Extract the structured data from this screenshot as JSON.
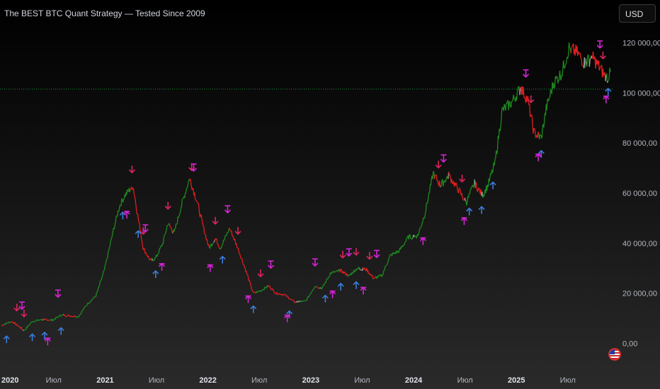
{
  "header": {
    "title": "The BEST BTC Quant Strategy — Tested Since 2009",
    "currency": "USD"
  },
  "colors": {
    "bull": "#1e8a1e",
    "bear": "#e01e1e",
    "neutral": "#9e9e9e",
    "long_signal": "#3b7ddd",
    "short_signal": "#e0245e",
    "exit_signal": "#d623d6",
    "dotted_line": "#1b8f3a"
  },
  "chart_data": {
    "type": "line",
    "title": "The BEST BTC Quant Strategy — Tested Since 2009",
    "x_tick_labels": [
      "2020",
      "Июл",
      "2021",
      "Июл",
      "2022",
      "Июл",
      "2023",
      "Июл",
      "2024",
      "Июл",
      "2025",
      "Июл"
    ],
    "y_tick_labels": [
      "0,00",
      "20 000,00",
      "40 000,00",
      "60 000,00",
      "80 000,00",
      "100 000,00",
      "120 000,00"
    ],
    "ylim": [
      -12000,
      130000
    ],
    "xlim": [
      2020.0,
      2025.95
    ],
    "horizontal_line": 101500,
    "series": [
      {
        "points": [
          [
            2020.0,
            7200
          ],
          [
            2020.1,
            8800
          ],
          [
            2020.18,
            6500
          ],
          [
            2020.22,
            5000
          ],
          [
            2020.3,
            8800
          ],
          [
            2020.4,
            9500
          ],
          [
            2020.5,
            9300
          ],
          [
            2020.58,
            11300
          ],
          [
            2020.67,
            11000
          ],
          [
            2020.75,
            10700
          ],
          [
            2020.83,
            15500
          ],
          [
            2020.92,
            19000
          ],
          [
            2021.0,
            29000
          ],
          [
            2021.05,
            38000
          ],
          [
            2021.1,
            47000
          ],
          [
            2021.15,
            55000
          ],
          [
            2021.2,
            59000
          ],
          [
            2021.28,
            63000
          ],
          [
            2021.33,
            50000
          ],
          [
            2021.38,
            38000
          ],
          [
            2021.45,
            33000
          ],
          [
            2021.5,
            34000
          ],
          [
            2021.57,
            40000
          ],
          [
            2021.62,
            48000
          ],
          [
            2021.68,
            44000
          ],
          [
            2021.75,
            55000
          ],
          [
            2021.83,
            66000
          ],
          [
            2021.9,
            57000
          ],
          [
            2021.96,
            47000
          ],
          [
            2022.02,
            38000
          ],
          [
            2022.08,
            42000
          ],
          [
            2022.13,
            38000
          ],
          [
            2022.22,
            46000
          ],
          [
            2022.3,
            38000
          ],
          [
            2022.37,
            30000
          ],
          [
            2022.45,
            20000
          ],
          [
            2022.52,
            21000
          ],
          [
            2022.6,
            23000
          ],
          [
            2022.67,
            20000
          ],
          [
            2022.75,
            19500
          ],
          [
            2022.85,
            16500
          ],
          [
            2022.96,
            16800
          ],
          [
            2023.05,
            23000
          ],
          [
            2023.12,
            22000
          ],
          [
            2023.2,
            28000
          ],
          [
            2023.3,
            29000
          ],
          [
            2023.38,
            27000
          ],
          [
            2023.46,
            30000
          ],
          [
            2023.55,
            29500
          ],
          [
            2023.62,
            26000
          ],
          [
            2023.7,
            27000
          ],
          [
            2023.78,
            35000
          ],
          [
            2023.87,
            37000
          ],
          [
            2023.96,
            42500
          ],
          [
            2024.05,
            43000
          ],
          [
            2024.12,
            52000
          ],
          [
            2024.2,
            68000
          ],
          [
            2024.27,
            63000
          ],
          [
            2024.35,
            67000
          ],
          [
            2024.45,
            61000
          ],
          [
            2024.52,
            56000
          ],
          [
            2024.6,
            64000
          ],
          [
            2024.68,
            59000
          ],
          [
            2024.73,
            63000
          ],
          [
            2024.8,
            72000
          ],
          [
            2024.87,
            93000
          ],
          [
            2024.96,
            96000
          ],
          [
            2025.05,
            102000
          ],
          [
            2025.12,
            97000
          ],
          [
            2025.18,
            84000
          ],
          [
            2025.25,
            82000
          ],
          [
            2025.3,
            94000
          ],
          [
            2025.37,
            104000
          ],
          [
            2025.45,
            108000
          ],
          [
            2025.52,
            118000
          ],
          [
            2025.6,
            116000
          ],
          [
            2025.67,
            112000
          ],
          [
            2025.75,
            114000
          ],
          [
            2025.82,
            110000
          ],
          [
            2025.88,
            106000
          ],
          [
            2025.93,
            108000
          ]
        ]
      }
    ],
    "signals": {
      "long": [
        2020.05,
        2020.3,
        2020.42,
        2020.58,
        2021.18,
        2021.33,
        2021.5,
        2022.15,
        2022.45,
        2022.8,
        2023.15,
        2023.3,
        2023.45,
        2024.55,
        2024.67,
        2024.78,
        2025.25,
        2025.9
      ],
      "short": [
        2020.15,
        2020.22,
        2021.27,
        2021.38,
        2021.62,
        2021.85,
        2022.08,
        2022.3,
        2022.52,
        2023.32,
        2023.45,
        2023.58,
        2024.25,
        2024.48,
        2025.15,
        2025.85
      ],
      "exit": [
        2020.2,
        2020.45,
        2020.55,
        2021.22,
        2021.4,
        2021.56,
        2021.87,
        2022.03,
        2022.2,
        2022.4,
        2022.62,
        2022.78,
        2023.05,
        2023.22,
        2023.38,
        2023.52,
        2023.65,
        2024.1,
        2024.3,
        2024.5,
        2025.1,
        2025.22,
        2025.82,
        2025.88
      ]
    }
  }
}
